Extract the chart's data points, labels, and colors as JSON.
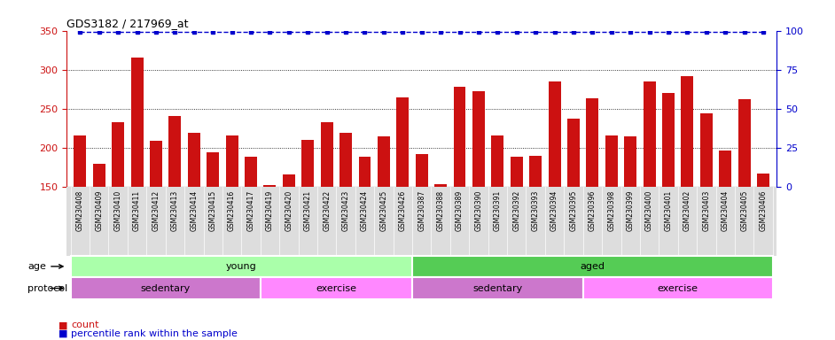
{
  "title": "GDS3182 / 217969_at",
  "samples": [
    "GSM230408",
    "GSM230409",
    "GSM230410",
    "GSM230411",
    "GSM230412",
    "GSM230413",
    "GSM230414",
    "GSM230415",
    "GSM230416",
    "GSM230417",
    "GSM230419",
    "GSM230420",
    "GSM230421",
    "GSM230422",
    "GSM230423",
    "GSM230424",
    "GSM230425",
    "GSM230426",
    "GSM230387",
    "GSM230388",
    "GSM230389",
    "GSM230390",
    "GSM230391",
    "GSM230392",
    "GSM230393",
    "GSM230394",
    "GSM230395",
    "GSM230396",
    "GSM230398",
    "GSM230399",
    "GSM230400",
    "GSM230401",
    "GSM230402",
    "GSM230403",
    "GSM230404",
    "GSM230405",
    "GSM230406"
  ],
  "counts": [
    216,
    179,
    233,
    315,
    209,
    241,
    219,
    194,
    216,
    188,
    152,
    166,
    210,
    233,
    219,
    189,
    214,
    265,
    192,
    153,
    278,
    272,
    216,
    188,
    190,
    285,
    237,
    263,
    216,
    214,
    285,
    270,
    292,
    244,
    196,
    262,
    167
  ],
  "ylim_left": [
    150,
    350
  ],
  "ylim_right": [
    0,
    100
  ],
  "yticks_left": [
    150,
    200,
    250,
    300,
    350
  ],
  "yticks_right": [
    0,
    25,
    50,
    75,
    100
  ],
  "bar_color": "#CC1111",
  "dot_color": "#0000CC",
  "age_groups": [
    {
      "label": "young",
      "start": 0,
      "end": 18,
      "color": "#AAFFAA"
    },
    {
      "label": "aged",
      "start": 18,
      "end": 37,
      "color": "#55CC55"
    }
  ],
  "protocol_groups": [
    {
      "label": "sedentary",
      "start": 0,
      "end": 10,
      "color": "#CC77CC"
    },
    {
      "label": "exercise",
      "start": 10,
      "end": 18,
      "color": "#FF88FF"
    },
    {
      "label": "sedentary",
      "start": 18,
      "end": 27,
      "color": "#CC77CC"
    },
    {
      "label": "exercise",
      "start": 27,
      "end": 37,
      "color": "#FF88FF"
    }
  ],
  "legend_count_label": "count",
  "legend_pct_label": "percentile rank within the sample",
  "xtick_bg_color": "#DDDDDD",
  "pct_value": 99
}
